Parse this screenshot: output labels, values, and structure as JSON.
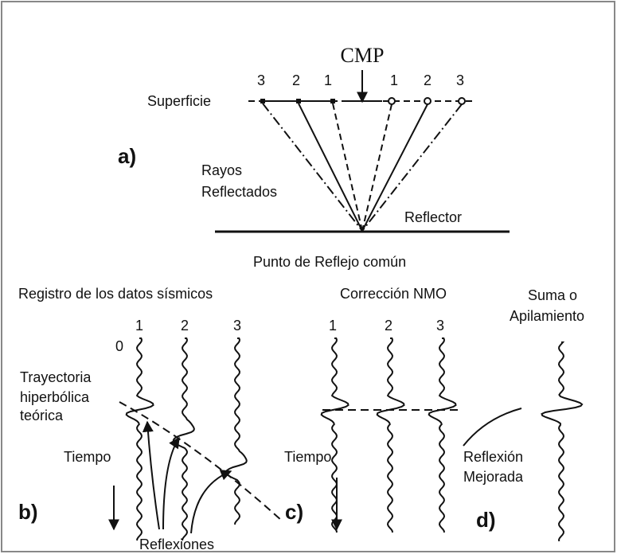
{
  "panel_a": {
    "cmp_label": "CMP",
    "left_offsets": [
      "3",
      "2",
      "1"
    ],
    "right_offsets": [
      "1",
      "2",
      "3"
    ],
    "surface_label": "Superficie",
    "label": "a)",
    "rays_label": [
      "Rayos",
      "Reflectados"
    ],
    "reflector_label": "Reflector",
    "common_point_label": "Punto de Reflejo común"
  },
  "panel_b": {
    "title": "Registro de los datos sísmicos",
    "trace_labels": [
      "1",
      "2",
      "3"
    ],
    "zero_label": "0",
    "hyperbola_label": [
      "Trayectoria",
      "hiperbólica",
      "teórica"
    ],
    "time_label": "Tiempo",
    "label": "b)",
    "reflections_label": "Reflexiones"
  },
  "panel_c": {
    "title": "Corrección NMO",
    "trace_labels": [
      "1",
      "2",
      "3"
    ],
    "time_label": "Tiempo",
    "label": "c)"
  },
  "panel_d": {
    "title": [
      "Suma o",
      "Apilamiento"
    ],
    "enhanced_label": [
      "Reflexión",
      "Mejorada"
    ],
    "label": "d)"
  }
}
